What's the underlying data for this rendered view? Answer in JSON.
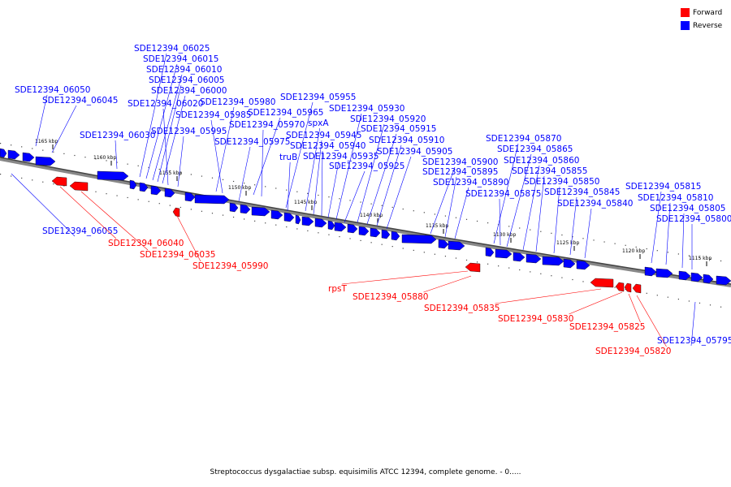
{
  "caption": "Streptococcus dysgalactiae subsp. equisimilis ATCC 12394, complete genome. - 0.....",
  "legend": [
    {
      "label": "Forward",
      "color": "#ff0000"
    },
    {
      "label": "Reverse",
      "color": "#0000ff"
    }
  ],
  "ticks": [
    "1165 kbp",
    "1160 kbp",
    "1155 kbp",
    "1150 kbp",
    "1145 kbp",
    "1140 kbp",
    "1135 kbp",
    "1130 kbp",
    "1125 kbp",
    "1120 kbp",
    "1115 kbp"
  ],
  "reverse_labels": [
    "SDE12394_06050",
    "SDE12394_06045",
    "SDE12394_06030",
    "SDE12394_06025",
    "SDE12394_06015",
    "SDE12394_06010",
    "SDE12394_06005",
    "SDE12394_06000",
    "SDE12394_06020",
    "SDE12394_05995",
    "SDE12394_05980",
    "SDE12394_05985",
    "SDE12394_05965",
    "SDE12394_05970",
    "SDE12394_05975",
    "SDE12394_05955",
    "spxA",
    "SDE12394_05945",
    "SDE12394_05940",
    "truB",
    "SDE12394_05935",
    "SDE12394_05930",
    "SDE12394_05920",
    "SDE12394_05915",
    "SDE12394_05910",
    "SDE12394_05905",
    "SDE12394_05925",
    "SDE12394_05900",
    "SDE12394_05895",
    "SDE12394_05890",
    "SDE12394_05870",
    "SDE12394_05865",
    "SDE12394_05860",
    "SDE12394_05855",
    "SDE12394_05875",
    "SDE12394_05850",
    "SDE12394_05845",
    "SDE12394_05840",
    "SDE12394_05815",
    "SDE12394_05810",
    "SDE12394_05805",
    "SDE12394_05800",
    "SDE12394_06055",
    "SDE12394_05795"
  ],
  "forward_labels": [
    "SDE12394_06040",
    "SDE12394_06035",
    "SDE12394_05990",
    "rpsT",
    "SDE12394_05880",
    "SDE12394_05835",
    "SDE12394_05830",
    "SDE12394_05825",
    "SDE12394_05820"
  ]
}
